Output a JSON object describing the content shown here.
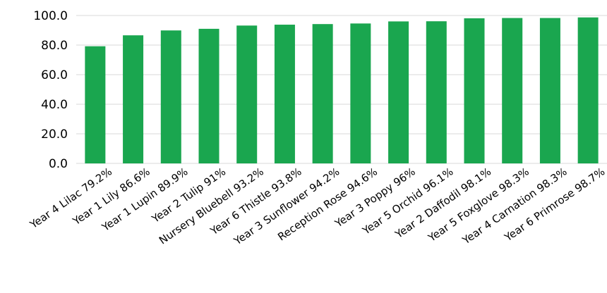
{
  "colors": {
    "bar": "#1aa64f",
    "grid": "#d9d9d9",
    "text": "#000000"
  },
  "chart_data": {
    "type": "bar",
    "title": "",
    "xlabel": "",
    "ylabel": "",
    "ylim": [
      0,
      100
    ],
    "yticks": [
      "0.0",
      "20.0",
      "40.0",
      "60.0",
      "80.0",
      "100.0"
    ],
    "grid": true,
    "legend": "none",
    "categories": [
      "Year 4 Lilac 79.2%",
      "Year 1 Lily 86.6%",
      "Year 1 Lupin 89.9%",
      "Year 2 Tulip 91%",
      "Nursery Bluebell 93.2%",
      "Year 6 Thistle 93.8%",
      "Year 3 Sunflower 94.2%",
      "Reception Rose 94.6%",
      "Year 3 Poppy 96%",
      "Year 5 Orchid 96.1%",
      "Year 2 Daffodil 98.1%",
      "Year 5 Foxglove 98.3%",
      "Year 4 Carnation 98.3%",
      "Year 6 Primrose 98.7%"
    ],
    "values": [
      79.2,
      86.6,
      89.9,
      91,
      93.2,
      93.8,
      94.2,
      94.6,
      96,
      96.1,
      98.1,
      98.3,
      98.3,
      98.7
    ]
  }
}
